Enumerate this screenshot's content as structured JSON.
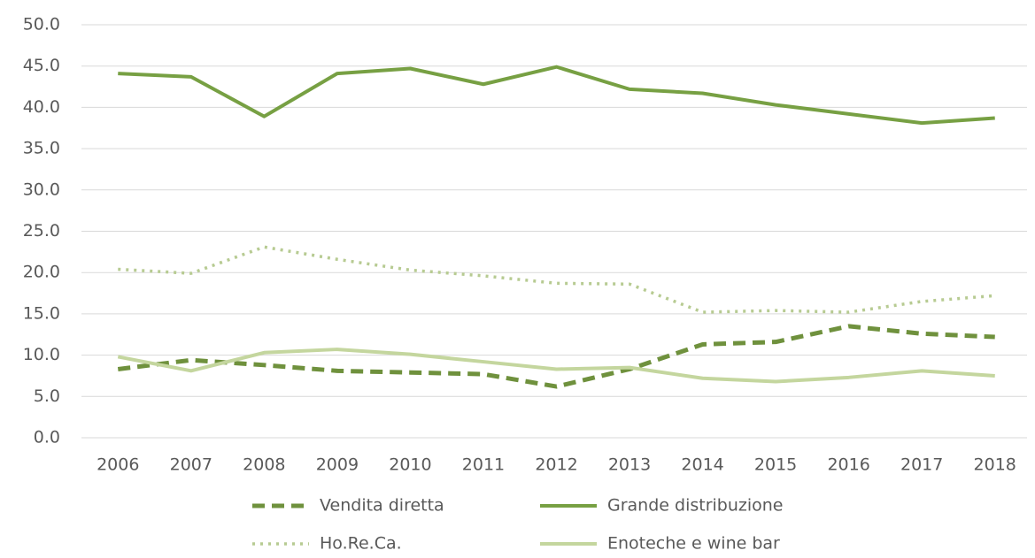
{
  "chart_data": {
    "type": "line",
    "categories": [
      "2006",
      "2007",
      "2008",
      "2009",
      "2010",
      "2011",
      "2012",
      "2013",
      "2014",
      "2015",
      "2016",
      "2017",
      "2018"
    ],
    "series": [
      {
        "name": "Vendita diretta",
        "color": "#6f913d",
        "style": "dashed",
        "values": [
          8.3,
          9.4,
          8.8,
          8.1,
          7.9,
          7.7,
          6.2,
          8.3,
          11.3,
          11.6,
          13.5,
          12.6,
          12.2
        ]
      },
      {
        "name": "Grande distribuzione",
        "color": "#77a043",
        "style": "solid",
        "values": [
          44.1,
          43.7,
          38.9,
          44.1,
          44.7,
          42.8,
          44.9,
          42.2,
          41.7,
          40.3,
          39.2,
          38.1,
          38.7
        ]
      },
      {
        "name": "Ho.Re.Ca.",
        "color": "#b7cb92",
        "style": "dotted",
        "values": [
          20.4,
          19.9,
          23.1,
          21.6,
          20.3,
          19.6,
          18.7,
          18.6,
          15.2,
          15.4,
          15.2,
          16.5,
          17.2
        ]
      },
      {
        "name": "Enoteche e wine bar",
        "color": "#c4d69e",
        "style": "solid",
        "values": [
          9.8,
          8.1,
          10.3,
          10.7,
          10.1,
          9.2,
          8.3,
          8.5,
          7.2,
          6.8,
          7.3,
          8.1,
          7.5
        ]
      }
    ],
    "ylim": [
      0,
      50
    ],
    "yticks": [
      {
        "value": 0,
        "label": "0.0"
      },
      {
        "value": 5,
        "label": "5.0"
      },
      {
        "value": 10,
        "label": "10.0"
      },
      {
        "value": 15,
        "label": "15.0"
      },
      {
        "value": 20,
        "label": "20.0"
      },
      {
        "value": 25,
        "label": "25.0"
      },
      {
        "value": 30,
        "label": "30.0"
      },
      {
        "value": 35,
        "label": "35.0"
      },
      {
        "value": 40,
        "label": "40.0"
      },
      {
        "value": 45,
        "label": "45.0"
      },
      {
        "value": 50,
        "label": "50.0"
      }
    ],
    "grid": true
  }
}
